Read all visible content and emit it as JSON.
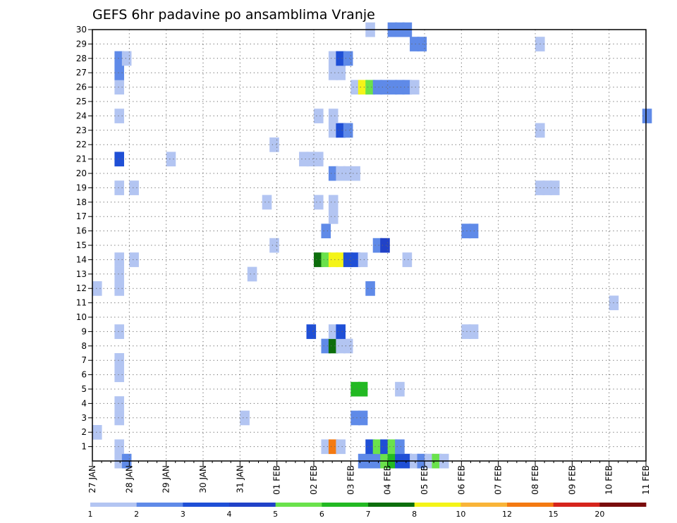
{
  "chart_data": {
    "type": "heatmap",
    "title": "GEFS 6hr padavine po ansamblima Vranje",
    "xlabel": "",
    "ylabel": "",
    "x_range_days": [
      0,
      15
    ],
    "x_ticks": [
      {
        "day": 0,
        "label": "27 JAN"
      },
      {
        "day": 1,
        "label": "28 JAN"
      },
      {
        "day": 2,
        "label": "29 JAN"
      },
      {
        "day": 3,
        "label": "30 JAN"
      },
      {
        "day": 4,
        "label": "31 JAN"
      },
      {
        "day": 5,
        "label": "01 FEB"
      },
      {
        "day": 6,
        "label": "02 FEB"
      },
      {
        "day": 7,
        "label": "03 FEB"
      },
      {
        "day": 8,
        "label": "04 FEB"
      },
      {
        "day": 9,
        "label": "05 FEB"
      },
      {
        "day": 10,
        "label": "06 FEB"
      },
      {
        "day": 11,
        "label": "07 FEB"
      },
      {
        "day": 12,
        "label": "08 FEB"
      },
      {
        "day": 13,
        "label": "09 FEB"
      },
      {
        "day": 14,
        "label": "10 FEB"
      },
      {
        "day": 15,
        "label": "11 FEB"
      }
    ],
    "y_ticks": [
      1,
      2,
      3,
      4,
      5,
      6,
      7,
      8,
      9,
      10,
      11,
      12,
      13,
      14,
      15,
      16,
      17,
      18,
      19,
      20,
      21,
      22,
      23,
      24,
      25,
      26,
      27,
      28,
      29,
      30
    ],
    "y_range": [
      0,
      30
    ],
    "grid": true,
    "colorbar": {
      "levels": [
        "1",
        "2",
        "3",
        "4",
        "5",
        "6",
        "7",
        "8",
        "10",
        "12",
        "15",
        "20"
      ],
      "colors": [
        "#b3c5f2",
        "#5f8ae8",
        "#1f4fd6",
        "#2142c8",
        "#6ae24b",
        "#22b922",
        "#0c6e0c",
        "#f4f418",
        "#f9b438",
        "#f47a12",
        "#d6241c",
        "#7a0c0c"
      ]
    },
    "series": [
      {
        "member": 0,
        "cells": [
          [
            0.6,
            1
          ],
          [
            0.8,
            2
          ],
          [
            7.2,
            2
          ],
          [
            7.4,
            2
          ],
          [
            7.6,
            2
          ],
          [
            7.8,
            5
          ],
          [
            8.0,
            6
          ],
          [
            8.2,
            3
          ],
          [
            8.4,
            3
          ],
          [
            8.6,
            1
          ],
          [
            8.8,
            2
          ],
          [
            9.0,
            1
          ],
          [
            9.2,
            5
          ],
          [
            9.4,
            1
          ]
        ]
      },
      {
        "member": 1,
        "cells": [
          [
            0.6,
            1
          ],
          [
            6.2,
            1
          ],
          [
            6.4,
            10
          ],
          [
            6.6,
            1
          ],
          [
            7.4,
            3
          ],
          [
            7.6,
            5
          ],
          [
            7.8,
            3
          ],
          [
            8.0,
            5
          ],
          [
            8.2,
            2
          ]
        ]
      },
      {
        "member": 2,
        "cells": [
          [
            0.0,
            1
          ]
        ]
      },
      {
        "member": 3,
        "cells": [
          [
            0.6,
            1
          ],
          [
            4.0,
            1
          ],
          [
            7.0,
            2
          ],
          [
            7.2,
            2
          ]
        ]
      },
      {
        "member": 4,
        "cells": [
          [
            0.6,
            1
          ]
        ]
      },
      {
        "member": 5,
        "cells": [
          [
            7.0,
            6
          ],
          [
            7.2,
            6
          ],
          [
            8.2,
            1
          ]
        ]
      },
      {
        "member": 6,
        "cells": [
          [
            0.6,
            1
          ]
        ]
      },
      {
        "member": 7,
        "cells": [
          [
            0.6,
            1
          ]
        ]
      },
      {
        "member": 8,
        "cells": [
          [
            6.2,
            2
          ],
          [
            6.4,
            7
          ],
          [
            6.6,
            1
          ],
          [
            6.8,
            1
          ]
        ]
      },
      {
        "member": 9,
        "cells": [
          [
            0.6,
            1
          ],
          [
            5.8,
            3
          ],
          [
            6.4,
            1
          ],
          [
            6.6,
            3
          ],
          [
            10.0,
            1
          ],
          [
            10.2,
            1
          ]
        ]
      },
      {
        "member": 11,
        "cells": [
          [
            14.0,
            1
          ]
        ]
      },
      {
        "member": 12,
        "cells": [
          [
            0.0,
            1
          ],
          [
            0.6,
            1
          ],
          [
            7.4,
            2
          ]
        ]
      },
      {
        "member": 13,
        "cells": [
          [
            0.6,
            1
          ],
          [
            4.2,
            1
          ]
        ]
      },
      {
        "member": 14,
        "cells": [
          [
            0.6,
            1
          ],
          [
            1.0,
            1
          ],
          [
            6.0,
            7
          ],
          [
            6.2,
            5
          ],
          [
            6.4,
            8
          ],
          [
            6.6,
            8
          ],
          [
            6.8,
            3
          ],
          [
            7.0,
            3
          ],
          [
            7.2,
            1
          ],
          [
            8.4,
            1
          ]
        ]
      },
      {
        "member": 15,
        "cells": [
          [
            4.8,
            1
          ],
          [
            7.6,
            2
          ],
          [
            7.8,
            4
          ]
        ]
      },
      {
        "member": 16,
        "cells": [
          [
            6.2,
            2
          ],
          [
            10.0,
            2
          ],
          [
            10.2,
            2
          ]
        ]
      },
      {
        "member": 17,
        "cells": [
          [
            6.4,
            1
          ]
        ]
      },
      {
        "member": 18,
        "cells": [
          [
            4.6,
            1
          ],
          [
            6.0,
            1
          ],
          [
            6.4,
            1
          ]
        ]
      },
      {
        "member": 19,
        "cells": [
          [
            0.6,
            1
          ],
          [
            1.0,
            1
          ],
          [
            12.0,
            1
          ],
          [
            12.2,
            1
          ],
          [
            12.4,
            1
          ]
        ]
      },
      {
        "member": 20,
        "cells": [
          [
            6.4,
            2
          ],
          [
            6.6,
            1
          ],
          [
            6.8,
            1
          ],
          [
            7.0,
            1
          ]
        ]
      },
      {
        "member": 21,
        "cells": [
          [
            0.6,
            3
          ],
          [
            2.0,
            1
          ],
          [
            5.6,
            1
          ],
          [
            5.8,
            1
          ],
          [
            6.0,
            1
          ]
        ]
      },
      {
        "member": 22,
        "cells": [
          [
            4.8,
            1
          ]
        ]
      },
      {
        "member": 23,
        "cells": [
          [
            6.4,
            1
          ],
          [
            6.6,
            3
          ],
          [
            6.8,
            2
          ],
          [
            12.0,
            1
          ]
        ]
      },
      {
        "member": 24,
        "cells": [
          [
            0.6,
            1
          ],
          [
            6.0,
            1
          ],
          [
            6.4,
            1
          ],
          [
            14.9,
            2
          ]
        ]
      },
      {
        "member": 26,
        "cells": [
          [
            0.6,
            1
          ],
          [
            7.0,
            1
          ],
          [
            7.2,
            8
          ],
          [
            7.4,
            5
          ],
          [
            7.6,
            2
          ],
          [
            7.8,
            2
          ],
          [
            8.0,
            2
          ],
          [
            8.2,
            2
          ],
          [
            8.4,
            2
          ],
          [
            8.6,
            1
          ]
        ]
      },
      {
        "member": 27,
        "cells": [
          [
            0.6,
            2
          ],
          [
            6.4,
            1
          ],
          [
            6.6,
            1
          ]
        ]
      },
      {
        "member": 28,
        "cells": [
          [
            0.6,
            2
          ],
          [
            0.8,
            1
          ],
          [
            6.4,
            1
          ],
          [
            6.6,
            3
          ],
          [
            6.8,
            2
          ]
        ]
      },
      {
        "member": 29,
        "cells": [
          [
            8.6,
            2
          ],
          [
            8.8,
            2
          ],
          [
            12.0,
            1
          ]
        ]
      },
      {
        "member": 30,
        "cells": [
          [
            7.4,
            1
          ],
          [
            8.0,
            2
          ],
          [
            8.2,
            2
          ],
          [
            8.4,
            2
          ]
        ]
      }
    ]
  }
}
